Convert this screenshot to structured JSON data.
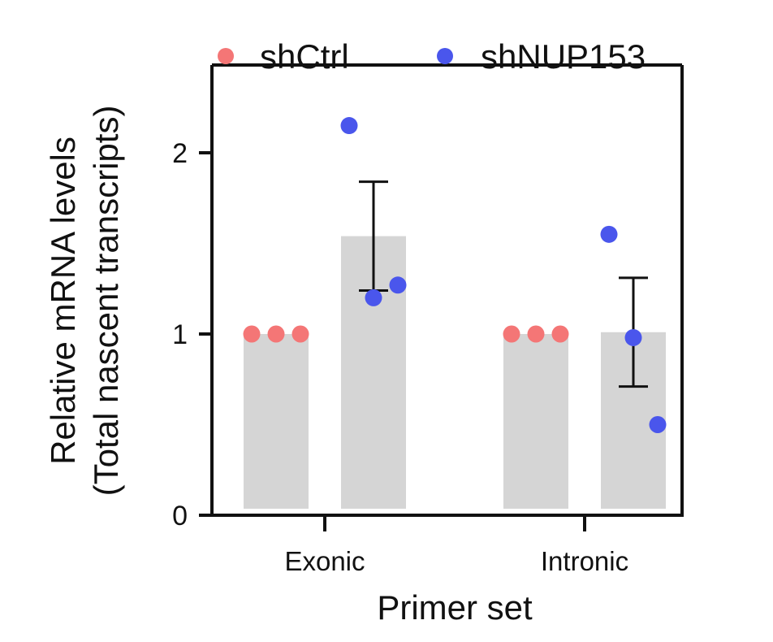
{
  "chart_data": {
    "type": "bar",
    "xlabel": "Primer set",
    "ylabel": [
      "Relative mRNA levels",
      "(Total nascent transcripts)"
    ],
    "categories": [
      "Exonic",
      "Intronic"
    ],
    "ylim": [
      0,
      2.5
    ],
    "yticks": [
      0,
      1,
      2
    ],
    "grid": false,
    "legend_position": "top",
    "bar_color": "#d5d5d5",
    "series": [
      {
        "name": "shCtrl",
        "color": "#f47676",
        "bar_values": [
          1.0,
          1.0
        ],
        "points": [
          [
            1.0,
            1.0,
            1.0
          ],
          [
            1.0,
            1.0,
            1.0
          ]
        ],
        "error": [
          null,
          null
        ]
      },
      {
        "name": "shNUP153",
        "color": "#4a56ec",
        "bar_values": [
          1.54,
          1.01
        ],
        "points": [
          [
            2.15,
            1.2,
            1.27
          ],
          [
            1.55,
            0.98,
            0.5
          ]
        ],
        "error": [
          [
            1.24,
            1.84
          ],
          [
            0.71,
            1.31
          ]
        ]
      }
    ]
  }
}
